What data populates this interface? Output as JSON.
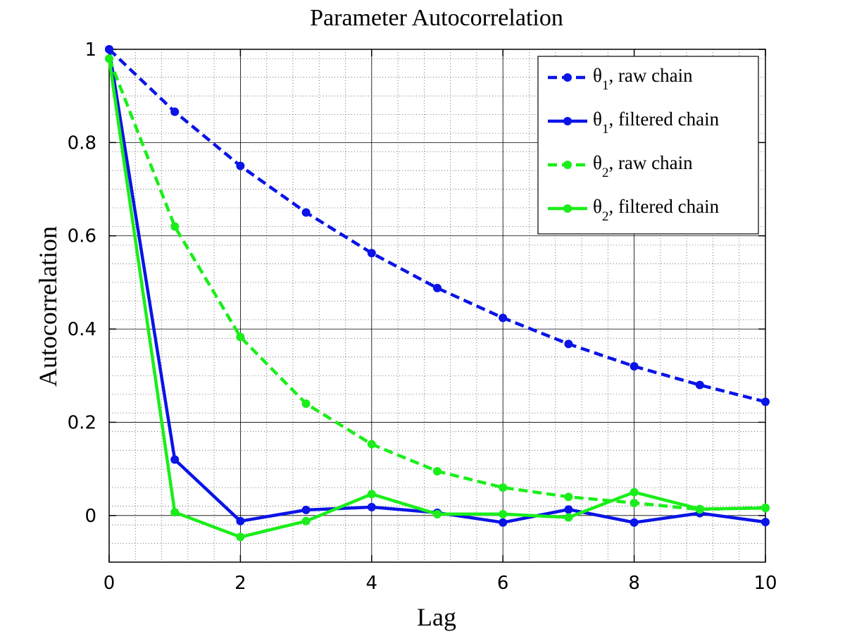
{
  "chart_data": {
    "type": "line",
    "title": "Parameter Autocorrelation",
    "xlabel": "Lag",
    "ylabel": "Autocorrelation",
    "xlim": [
      0,
      10
    ],
    "ylim": [
      -0.1,
      1
    ],
    "xticks": [
      0,
      2,
      4,
      6,
      8,
      10
    ],
    "yticks": [
      0,
      0.2,
      0.4,
      0.6,
      0.8,
      1
    ],
    "ytick_labels": [
      "0",
      "0.2",
      "0.4",
      "0.6",
      "0.8",
      "1"
    ],
    "grid": true,
    "minor_grid": true,
    "legend_position": "top-right",
    "x": [
      0,
      1,
      2,
      3,
      4,
      5,
      6,
      7,
      8,
      9,
      10
    ],
    "series": [
      {
        "name": "θ1, raw chain",
        "symbol": "θ",
        "subscript": "1",
        "suffix": ", raw chain",
        "color": "#0a14e6",
        "dashed": true,
        "values": [
          1.0,
          0.866,
          0.75,
          0.65,
          0.563,
          0.488,
          0.424,
          0.368,
          0.32,
          0.28,
          0.244
        ]
      },
      {
        "name": "θ1, filtered chain",
        "symbol": "θ",
        "subscript": "1",
        "suffix": ", filtered chain",
        "color": "#0a14e6",
        "dashed": false,
        "values": [
          1.0,
          0.12,
          -0.012,
          0.012,
          0.018,
          0.006,
          -0.015,
          0.013,
          -0.015,
          0.005,
          -0.014
        ]
      },
      {
        "name": "θ2, raw chain",
        "symbol": "θ",
        "subscript": "2",
        "suffix": ", raw chain",
        "color": "#1aee1a",
        "dashed": true,
        "values": [
          0.98,
          0.62,
          0.383,
          0.24,
          0.153,
          0.095,
          0.06,
          0.04,
          0.027,
          0.013,
          0.017
        ]
      },
      {
        "name": "θ2, filtered chain",
        "symbol": "θ",
        "subscript": "2",
        "suffix": ", filtered chain",
        "color": "#1aee1a",
        "dashed": false,
        "values": [
          0.98,
          0.007,
          -0.046,
          -0.012,
          0.046,
          0.003,
          0.003,
          -0.004,
          0.05,
          0.014,
          0.016
        ]
      }
    ]
  }
}
